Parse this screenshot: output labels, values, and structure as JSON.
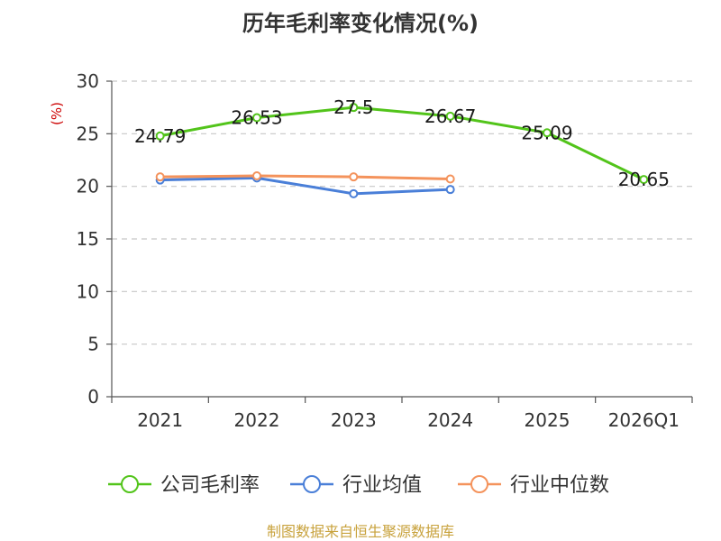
{
  "chart_data": {
    "type": "line",
    "title": "历年毛利率变化情况(%)",
    "unit_label": "(%)",
    "categories": [
      "2021",
      "2022",
      "2023",
      "2024",
      "2025",
      "2026Q1"
    ],
    "ylim": [
      0,
      30
    ],
    "yticks": [
      0,
      5,
      10,
      15,
      20,
      25,
      30
    ],
    "grid": true,
    "legend_position": "bottom",
    "series": [
      {
        "name": "公司毛利率",
        "color": "#52c41a",
        "values": [
          24.79,
          26.53,
          27.5,
          26.67,
          25.09,
          20.65
        ],
        "labels": [
          "24.79",
          "26.53",
          "27.5",
          "26.67",
          "25.09",
          "20.65"
        ]
      },
      {
        "name": "行业均值",
        "color": "#4a7fd8",
        "values": [
          20.6,
          20.8,
          19.3,
          19.7,
          null,
          null
        ]
      },
      {
        "name": "行业中位数",
        "color": "#f4935c",
        "values": [
          20.9,
          21.0,
          20.9,
          20.7,
          null,
          null
        ]
      }
    ]
  },
  "source_text": "制图数据来自恒生聚源数据库"
}
